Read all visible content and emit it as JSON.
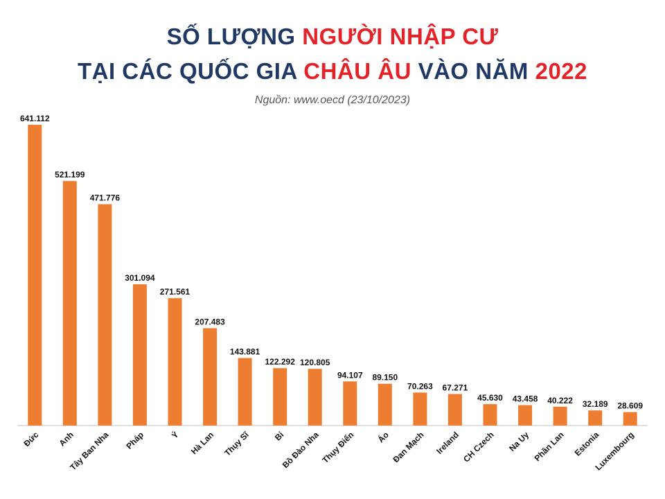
{
  "title": {
    "line1_part1": "SỐ LƯỢNG ",
    "line1_highlight": "NGƯỜI NHẬP CƯ",
    "line2_part1": "TẠI CÁC QUỐC GIA ",
    "line2_highlight1": "CHÂU ÂU",
    "line2_part2": " VÀO NĂM ",
    "line2_highlight2": "2022"
  },
  "source": "Nguồn: www.oecd (23/10/2023)",
  "colors": {
    "bar": "#ed7d31",
    "title": "#1f3864",
    "highlight": "#e3232a",
    "axis": "#bfbfbf"
  },
  "chart_data": {
    "type": "bar",
    "categories": [
      "Đức",
      "Anh",
      "Tây Ban Nha",
      "Pháp",
      "Ý",
      "Hà Lan",
      "Thụy Sĩ",
      "Bỉ",
      "Bồ Đào Nha",
      "Thụy Điển",
      "Áo",
      "Đan Mạch",
      "Ireland",
      "CH Czech",
      "Na Uy",
      "Phần Lan",
      "Estonia",
      "Luxembourg"
    ],
    "values": [
      641112,
      521199,
      471776,
      301094,
      271561,
      207483,
      143881,
      122292,
      120805,
      94107,
      89150,
      70263,
      67271,
      45630,
      43458,
      40222,
      32189,
      28609
    ],
    "value_labels": [
      "641.112",
      "521.199",
      "471.776",
      "301.094",
      "271.561",
      "207.483",
      "143.881",
      "122.292",
      "120.805",
      "94.107",
      "89.150",
      "70.263",
      "67.271",
      "45.630",
      "43.458",
      "40.222",
      "32.189",
      "28.609"
    ],
    "ylim": [
      0,
      641112
    ],
    "grid": false,
    "legend": "none",
    "title": "",
    "xlabel": "",
    "ylabel": ""
  }
}
